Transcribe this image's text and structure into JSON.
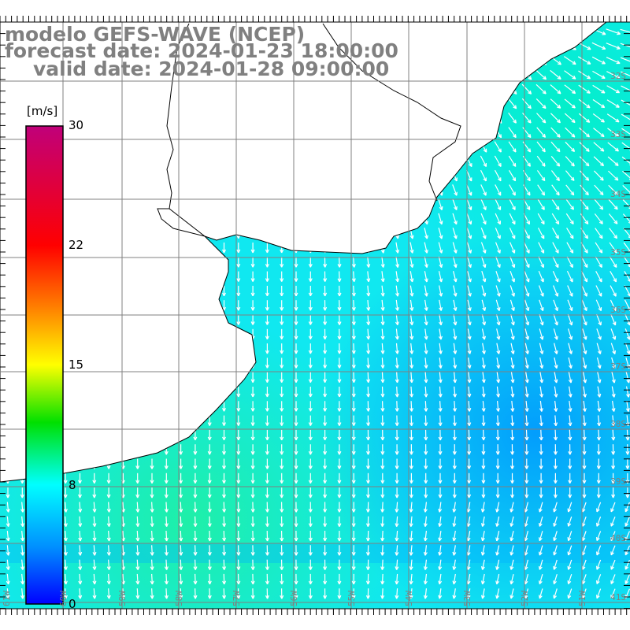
{
  "title": {
    "model": "modelo GEFS-WAVE (NCEP)",
    "forecast": "forecast date: 2024-01-23 18:00:00",
    "valid": "valid date: 2024-01-28 09:00:00"
  },
  "colorbar": {
    "unit": "[m/s]",
    "ticks": [
      "30",
      "22",
      "15",
      "8",
      "0"
    ],
    "colors": [
      "#c0007a",
      "#ff0000",
      "#ff8000",
      "#ffff00",
      "#00e000",
      "#00ffff",
      "#0080ff",
      "#0000ff"
    ]
  },
  "lat_labels": [
    "32S",
    "33S",
    "34S",
    "35S",
    "36S",
    "37S",
    "38S",
    "39S",
    "40S",
    "41S"
  ],
  "lon_labels": [
    "61W",
    "60W",
    "59W",
    "58W",
    "57W",
    "56W",
    "55W",
    "54W",
    "53W",
    "52W",
    "51W"
  ]
}
